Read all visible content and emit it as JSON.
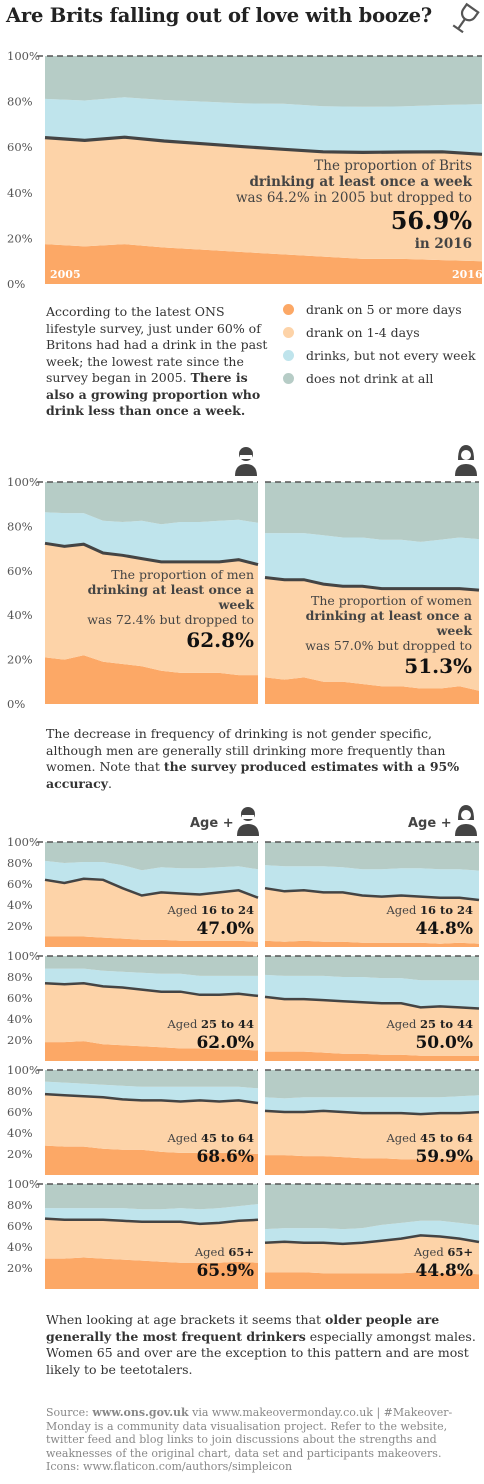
{
  "header": {
    "title": "Are Brits falling out of love with booze?"
  },
  "colors": {
    "c5": "#fca866",
    "c14": "#fdd3a8",
    "cnot": "#bfe4ec",
    "cnone": "#b6ccc6",
    "line": "#444444"
  },
  "main_chart": {
    "start_label": "2005",
    "end_label": "2016",
    "annotation": {
      "l1": "The proportion of Brits",
      "l2": "drinking at least once a week",
      "l3": "was 64.2% in 2005 but dropped to",
      "value": "56.9%",
      "l4": "in 2016"
    }
  },
  "intro": {
    "plain": "According to the latest ONS lifestyle survey, just under 60% of Britons had had a drink in the past week; the lowest rate since the survey began in 2005.",
    "bold": "There is also a growing proportion who drink less than once a week."
  },
  "legend": [
    "drank on 5 or more days",
    "drank on 1-4 days",
    "drinks, but not every week",
    "does not drink at all"
  ],
  "gender": {
    "men": {
      "l1": "The proportion of men",
      "l2": "drinking at least once a week",
      "l3": "was 72.4% but dropped to",
      "value": "62.8%"
    },
    "women": {
      "l1": "The proportion of women",
      "l2": "drinking at least once a week",
      "l3": "was 57.0% but dropped to",
      "value": "51.3%"
    }
  },
  "gender_note": {
    "plain": "The decrease in frequency of drinking is not gender specific, although men are generally still drinking more frequently than women. Note that",
    "bold": "the survey produced estimates with a 95% accuracy",
    "end": "."
  },
  "age": {
    "label": "Age +",
    "rows": [
      {
        "range": "16 to 24",
        "men": "47.0%",
        "women": "44.8%"
      },
      {
        "range": "25 to 44",
        "men": "62.0%",
        "women": "50.0%"
      },
      {
        "range": "45 to 64",
        "men": "68.6%",
        "women": "59.9%"
      },
      {
        "range": "65+",
        "men": "65.9%",
        "women": "44.8%"
      }
    ],
    "aged_word": "Aged"
  },
  "age_note": {
    "p1": "When looking at age brackets it seems that",
    "bold": "older people are generally the most frequent drinkers",
    "p2": "especially amongst males. Women 65 and over are the exception to this pattern and are most likely to be teetotalers."
  },
  "source": {
    "lead": "Source:",
    "site1": "www.ons.gov.uk",
    "rest": "via www.makeovermonday.co.uk | #Makeover-Monday is a community data visualisation project. Refer to the website, twitter feed and blog links to join discussions about the strengths and weaknesses of the original chart, data set and participants makeovers. Icons: www.flaticon.com/authors/simpleicon"
  },
  "chart_data": [
    {
      "type": "area",
      "name": "All",
      "x": [
        2005,
        2006,
        2007,
        2008,
        2009,
        2010,
        2011,
        2012,
        2013,
        2014,
        2015,
        2016
      ],
      "ylim": [
        0,
        100
      ],
      "yticks": [
        "0%",
        "20%",
        "40%",
        "60%",
        "80%",
        "100%"
      ],
      "series": [
        {
          "name": "drank on 5 or more days",
          "values": [
            17.5,
            16.5,
            17.5,
            16,
            15,
            14,
            13,
            12,
            11,
            11,
            10.5,
            10
          ]
        },
        {
          "name": "drank on 1-4 days",
          "values": [
            46.7,
            46.5,
            46.9,
            46.7,
            46.5,
            46.2,
            46.1,
            46.0,
            46.7,
            46.9,
            47.5,
            46.9
          ]
        },
        {
          "name": "drinks, but not every week",
          "values": [
            17,
            17.5,
            17.5,
            18,
            18.5,
            19,
            20,
            20,
            20,
            20,
            20.5,
            22
          ]
        },
        {
          "name": "does not drink at all",
          "values": [
            18.8,
            19.5,
            18.1,
            19.3,
            20,
            20.8,
            20.9,
            22,
            22.3,
            22.1,
            21.5,
            21.1
          ]
        }
      ]
    },
    {
      "type": "area",
      "name": "Men",
      "ylim": [
        0,
        100
      ],
      "yticks": [
        "0%",
        "20%",
        "40%",
        "60%",
        "80%",
        "100%"
      ],
      "series": [
        {
          "name": "drank on 5 or more days",
          "values": [
            21,
            20,
            22,
            19,
            18,
            17,
            15,
            14,
            14,
            14,
            13,
            13
          ]
        },
        {
          "name": "drank on 1-4 days",
          "values": [
            51.4,
            51,
            50,
            49,
            49,
            48.5,
            49,
            50,
            50,
            50,
            52,
            49.8
          ]
        },
        {
          "name": "drinks, but not every week",
          "values": [
            14,
            15,
            14,
            14.5,
            15,
            17,
            17,
            18,
            18,
            18.5,
            18,
            18.8
          ]
        },
        {
          "name": "does not drink at all",
          "values": [
            13.6,
            14,
            14,
            17.5,
            18,
            17.5,
            19,
            18,
            18,
            17.5,
            17,
            18.4
          ]
        }
      ]
    },
    {
      "type": "area",
      "name": "Women",
      "ylim": [
        0,
        100
      ],
      "yticks": [
        "0%",
        "20%",
        "40%",
        "60%",
        "80%",
        "100%"
      ],
      "series": [
        {
          "name": "drank on 5 or more days",
          "values": [
            12,
            11,
            12,
            10,
            10,
            9,
            8,
            8,
            7,
            7,
            8,
            6
          ]
        },
        {
          "name": "drank on 1-4 days",
          "values": [
            45,
            45,
            44,
            44,
            43,
            44,
            44,
            44,
            45,
            45,
            44,
            45.3
          ]
        },
        {
          "name": "drinks, but not every week",
          "values": [
            20,
            21,
            21,
            22,
            22,
            22,
            22,
            22,
            21,
            22,
            23,
            23
          ]
        },
        {
          "name": "does not drink at all",
          "values": [
            23,
            23,
            23,
            24,
            25,
            25,
            26,
            26,
            27,
            26,
            25,
            25.7
          ]
        }
      ]
    },
    {
      "type": "line",
      "name": "Aged 16 to 24",
      "series": [
        {
          "name": "Men",
          "values": [
            64,
            61,
            65,
            64,
            56,
            49,
            52,
            51,
            50,
            52,
            54,
            47
          ]
        },
        {
          "name": "Women",
          "values": [
            56,
            53,
            54,
            52,
            52,
            49,
            48,
            49,
            48,
            47,
            47,
            44.8
          ]
        }
      ]
    },
    {
      "type": "line",
      "name": "Aged 25 to 44",
      "series": [
        {
          "name": "Men",
          "values": [
            74,
            73,
            74,
            71,
            70,
            68,
            66,
            66,
            63,
            63,
            64,
            62
          ]
        },
        {
          "name": "Women",
          "values": [
            61,
            59,
            59,
            58,
            57,
            56,
            55,
            55,
            51,
            52,
            51,
            50
          ]
        }
      ]
    },
    {
      "type": "line",
      "name": "Aged 45 to 64",
      "series": [
        {
          "name": "Men",
          "values": [
            77,
            76,
            75,
            74,
            72,
            71,
            71,
            70,
            71,
            70,
            71,
            68.6
          ]
        },
        {
          "name": "Women",
          "values": [
            61,
            60,
            60,
            61,
            60,
            59,
            59,
            59,
            58,
            59,
            59,
            59.9
          ]
        }
      ]
    },
    {
      "type": "line",
      "name": "Aged 65+",
      "series": [
        {
          "name": "Men",
          "values": [
            67,
            66,
            66,
            66,
            65,
            64,
            64,
            64,
            62,
            63,
            65,
            65.9
          ]
        },
        {
          "name": "Women",
          "values": [
            44,
            45,
            44,
            44,
            43,
            44,
            46,
            48,
            51,
            50,
            48,
            44.8
          ]
        }
      ]
    }
  ]
}
